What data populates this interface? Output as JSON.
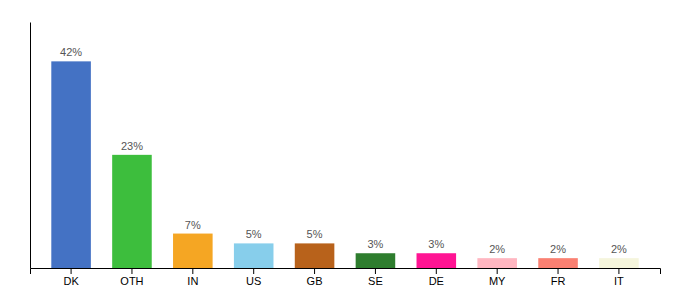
{
  "chart_data": {
    "type": "bar",
    "categories": [
      "DK",
      "OTH",
      "IN",
      "US",
      "GB",
      "SE",
      "DE",
      "MY",
      "FR",
      "IT"
    ],
    "values": [
      42,
      23,
      7,
      5,
      5,
      3,
      3,
      2,
      2,
      2
    ],
    "value_labels": [
      "42%",
      "23%",
      "7%",
      "5%",
      "5%",
      "3%",
      "3%",
      "2%",
      "2%",
      "2%"
    ],
    "colors": [
      "#4472C4",
      "#3DBE3D",
      "#F5A623",
      "#87CEEB",
      "#B8621B",
      "#2E7D2E",
      "#FF1493",
      "#FFB6C1",
      "#FA8072",
      "#F5F5DC"
    ],
    "ylim": [
      0,
      50
    ],
    "grid": false,
    "data_labels": true,
    "tick_labels": "x"
  }
}
